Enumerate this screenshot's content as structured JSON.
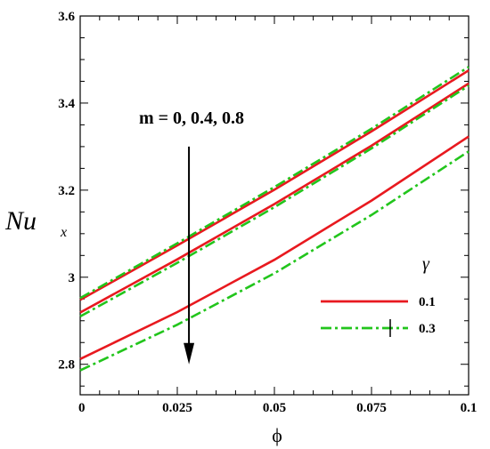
{
  "chart_data": {
    "type": "line",
    "title": "",
    "xlabel": "ϕ",
    "ylabel_main": "Nu",
    "ylabel_sub": "x",
    "xlim": [
      0,
      0.1
    ],
    "ylim": [
      2.73,
      3.6
    ],
    "x_ticks": [
      {
        "v": 0,
        "label": "0"
      },
      {
        "v": 0.025,
        "label": "0.025"
      },
      {
        "v": 0.05,
        "label": "0.05"
      },
      {
        "v": 0.075,
        "label": "0.075"
      },
      {
        "v": 0.1,
        "label": "0.1"
      }
    ],
    "y_ticks": [
      {
        "v": 2.8,
        "label": "2.8"
      },
      {
        "v": 3.0,
        "label": "3"
      },
      {
        "v": 3.2,
        "label": "3.2"
      },
      {
        "v": 3.4,
        "label": "3.4"
      },
      {
        "v": 3.6,
        "label": "3.6"
      }
    ],
    "grid": false,
    "legend_title": "γ",
    "legend_position": "lower-right",
    "annotation": "m = 0, 0.4, 0.8",
    "colors": {
      "red": "#e8191f",
      "green": "#22c51c"
    },
    "series": [
      {
        "name": "0.1",
        "m": 0,
        "style": "solid",
        "color": "#e8191f",
        "x": [
          0,
          0.025,
          0.05,
          0.075,
          0.1
        ],
        "y": [
          2.948,
          3.073,
          3.201,
          3.335,
          3.475
        ]
      },
      {
        "name": "0.1",
        "m": 0.4,
        "style": "solid",
        "color": "#e8191f",
        "x": [
          0,
          0.025,
          0.05,
          0.075,
          0.1
        ],
        "y": [
          2.919,
          3.041,
          3.168,
          3.302,
          3.445
        ]
      },
      {
        "name": "0.1",
        "m": 0.8,
        "style": "solid",
        "color": "#e8191f",
        "x": [
          0,
          0.025,
          0.05,
          0.075,
          0.1
        ],
        "y": [
          2.812,
          2.92,
          3.04,
          3.176,
          3.323
        ]
      },
      {
        "name": "0.3",
        "m": 0,
        "style": "dashdot",
        "color": "#22c51c",
        "x": [
          0,
          0.025,
          0.05,
          0.075,
          0.1
        ],
        "y": [
          2.952,
          3.078,
          3.207,
          3.341,
          3.483
        ]
      },
      {
        "name": "0.3",
        "m": 0.4,
        "style": "dashdot",
        "color": "#22c51c",
        "x": [
          0,
          0.025,
          0.05,
          0.075,
          0.1
        ],
        "y": [
          2.91,
          3.033,
          3.161,
          3.296,
          3.44
        ]
      },
      {
        "name": "0.3",
        "m": 0.8,
        "style": "dashdot",
        "color": "#22c51c",
        "x": [
          0,
          0.025,
          0.05,
          0.075,
          0.1
        ],
        "y": [
          2.786,
          2.891,
          3.009,
          3.143,
          3.289
        ]
      }
    ],
    "legend": [
      {
        "label": "0.1",
        "style": "solid",
        "color": "#e8191f"
      },
      {
        "label": "0.3",
        "style": "dashdot",
        "color": "#22c51c"
      }
    ],
    "arrow": {
      "x": 0.028,
      "y_from": 3.3,
      "y_to": 2.8
    }
  }
}
